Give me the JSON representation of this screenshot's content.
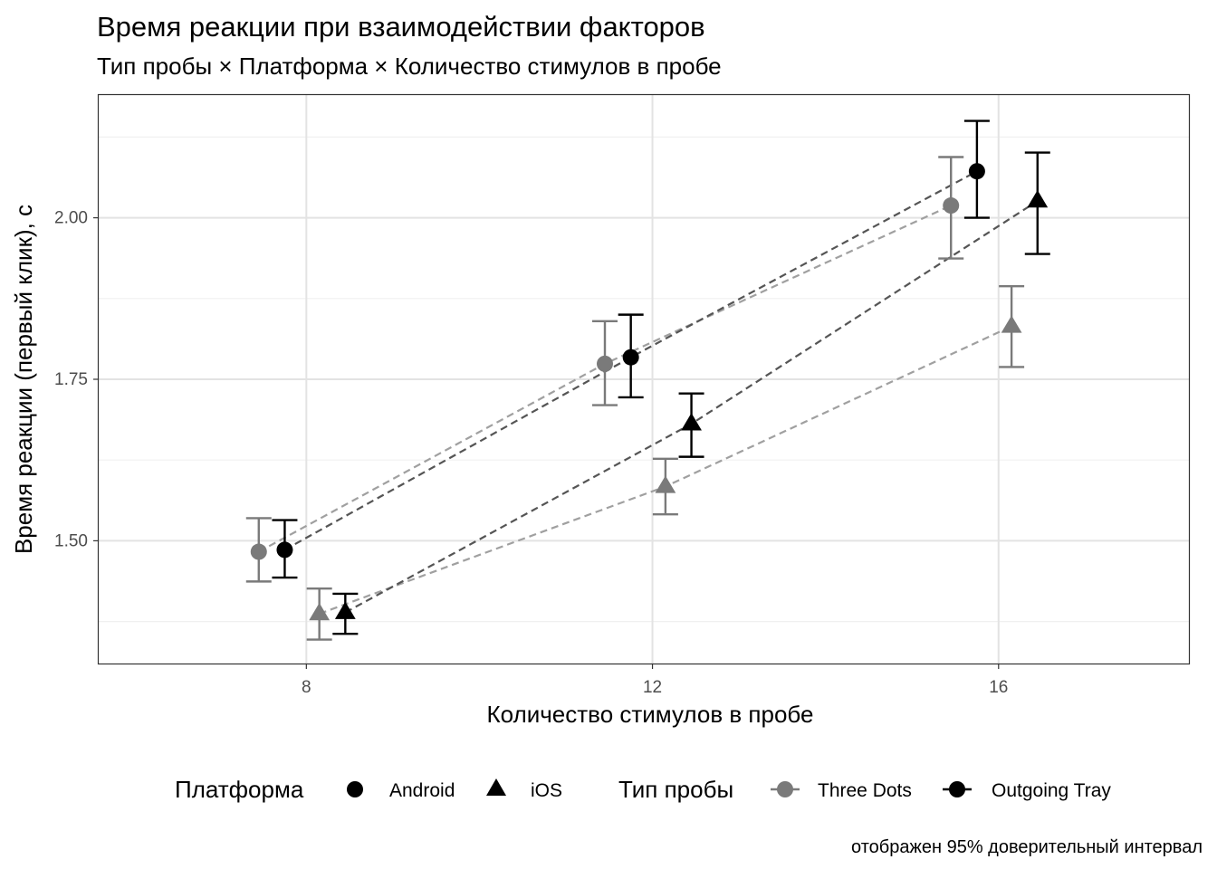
{
  "chart_data": {
    "type": "scatter",
    "title": "Время реакции при взаимодействии факторов",
    "subtitle": "Тип пробы × Платформа × Количество стимулов в пробе",
    "xlabel": "Количество стимулов в пробе",
    "ylabel": "Время реакции (первый клик), с",
    "caption": "отображен 95% доверительный интервал",
    "x_ticks": [
      8,
      12,
      16
    ],
    "y_ticks": [
      1.5,
      1.75,
      2.0
    ],
    "y_tick_labels": [
      "1.50",
      "1.75",
      "2.00"
    ],
    "xlim": [
      5.6,
      18.2
    ],
    "ylim": [
      1.31,
      2.19
    ],
    "grid": true,
    "legend_position": "bottom",
    "error_bars": "95% CI",
    "legend": {
      "platform_title": "Платформа",
      "platform_items": [
        {
          "label": "Android",
          "shape": "circle"
        },
        {
          "label": "iOS",
          "shape": "triangle"
        }
      ],
      "trial_title": "Тип пробы",
      "trial_items": [
        {
          "label": "Three Dots",
          "color": "#7a7a7a"
        },
        {
          "label": "Outgoing Tray",
          "color": "#000000"
        }
      ]
    },
    "series": [
      {
        "trial": "Three Dots",
        "platform": "Android",
        "shape": "circle",
        "color": "#7a7a7a",
        "line_color": "#a0a0a0",
        "points": [
          {
            "x": 8,
            "y": 1.483,
            "ymin": 1.437,
            "ymax": 1.535
          },
          {
            "x": 12,
            "y": 1.774,
            "ymin": 1.71,
            "ymax": 1.84
          },
          {
            "x": 16,
            "y": 2.019,
            "ymin": 1.937,
            "ymax": 2.094
          }
        ]
      },
      {
        "trial": "Outgoing Tray",
        "platform": "Android",
        "shape": "circle",
        "color": "#000000",
        "line_color": "#555555",
        "points": [
          {
            "x": 8,
            "y": 1.486,
            "ymin": 1.443,
            "ymax": 1.532
          },
          {
            "x": 12,
            "y": 1.784,
            "ymin": 1.722,
            "ymax": 1.85
          },
          {
            "x": 16,
            "y": 2.072,
            "ymin": 2.0,
            "ymax": 2.15
          }
        ]
      },
      {
        "trial": "Three Dots",
        "platform": "iOS",
        "shape": "triangle",
        "color": "#7a7a7a",
        "line_color": "#a0a0a0",
        "points": [
          {
            "x": 8,
            "y": 1.387,
            "ymin": 1.347,
            "ymax": 1.426
          },
          {
            "x": 12,
            "y": 1.584,
            "ymin": 1.541,
            "ymax": 1.627
          },
          {
            "x": 16,
            "y": 1.832,
            "ymin": 1.769,
            "ymax": 1.894
          }
        ]
      },
      {
        "trial": "Outgoing Tray",
        "platform": "iOS",
        "shape": "triangle",
        "color": "#000000",
        "line_color": "#555555",
        "points": [
          {
            "x": 8,
            "y": 1.389,
            "ymin": 1.356,
            "ymax": 1.418
          },
          {
            "x": 12,
            "y": 1.681,
            "ymin": 1.63,
            "ymax": 1.728
          },
          {
            "x": 16,
            "y": 2.026,
            "ymin": 1.944,
            "ymax": 2.101
          }
        ]
      }
    ]
  }
}
